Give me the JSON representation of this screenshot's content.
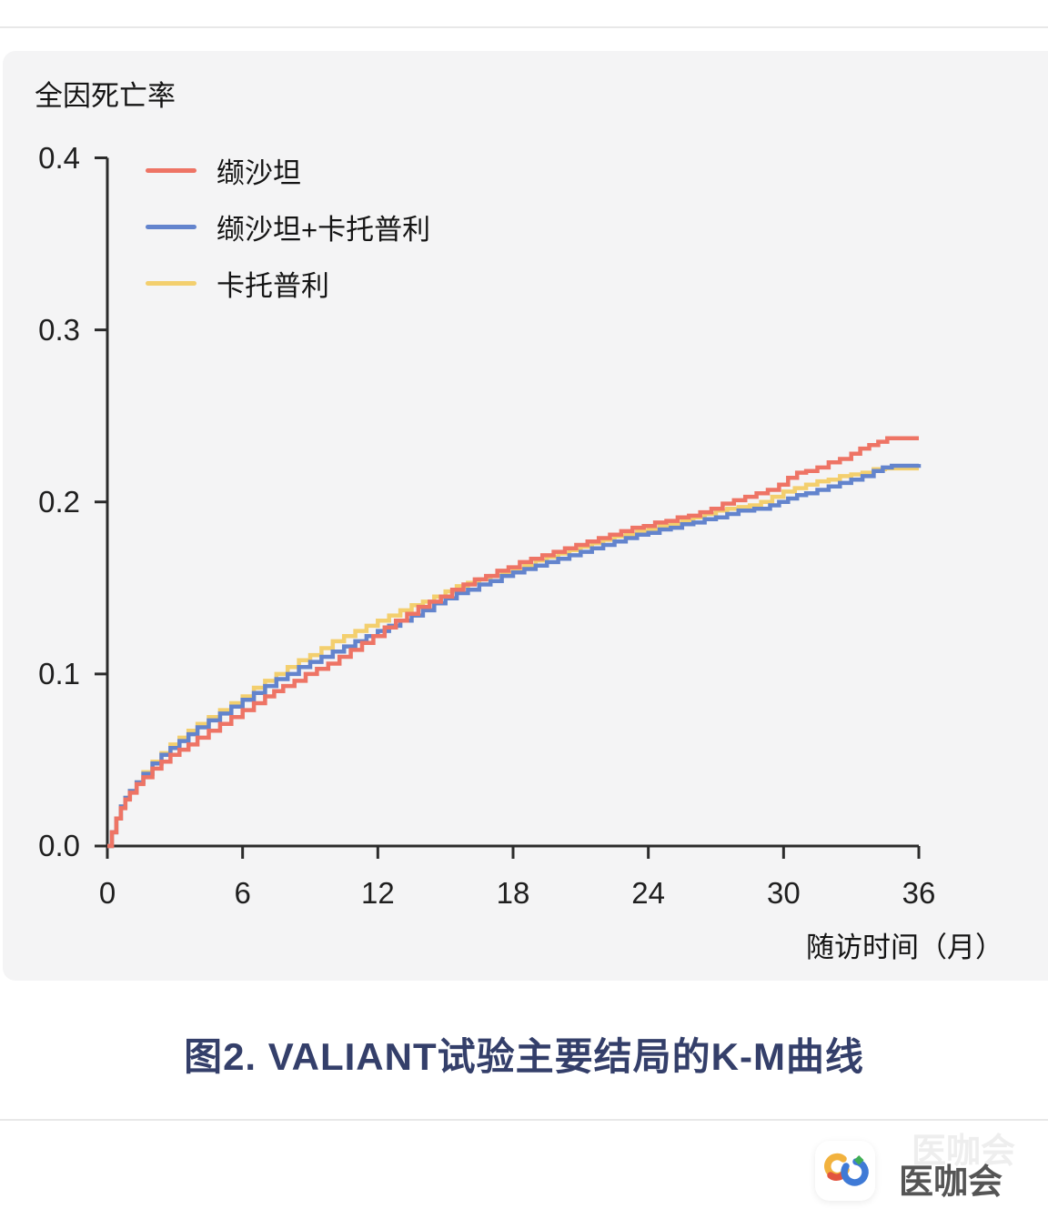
{
  "chart_title": "全因死亡率",
  "x_axis_title": "随访时间（月）",
  "caption": "图2. VALIANT试验主要结局的K-M曲线",
  "watermark": {
    "text": "医咖会"
  },
  "colors": {
    "valsartan": "#ee7465",
    "valsartan_captopril": "#6384cd",
    "captopril": "#f3cf6e",
    "axis": "#2b2b2b",
    "panel": "#f4f4f5",
    "caption": "#343f6a",
    "divider": "#e8e8e8"
  },
  "chart_data": {
    "type": "line",
    "subtype": "kaplan-meier-step",
    "title": "全因死亡率",
    "xlabel": "随访时间（月）",
    "ylabel": "全因死亡率",
    "xlim": [
      0,
      36
    ],
    "ylim": [
      0,
      0.4
    ],
    "x_ticks": [
      0,
      6,
      12,
      18,
      24,
      30,
      36
    ],
    "y_ticks": [
      0.0,
      0.1,
      0.2,
      0.3,
      0.4
    ],
    "y_tick_labels": [
      "0.0",
      "0.1",
      "0.2",
      "0.3",
      "0.4"
    ],
    "grid": false,
    "legend_position": "top-left",
    "series": [
      {
        "name": "缬沙坦",
        "color": "#ee7465",
        "final_value": 0.237,
        "points": [
          [
            0,
            0
          ],
          [
            0.2,
            0.008
          ],
          [
            0.4,
            0.016
          ],
          [
            0.6,
            0.022
          ],
          [
            0.8,
            0.027
          ],
          [
            1,
            0.031
          ],
          [
            1.3,
            0.036
          ],
          [
            1.6,
            0.04
          ],
          [
            2,
            0.045
          ],
          [
            2.4,
            0.049
          ],
          [
            2.8,
            0.053
          ],
          [
            3.2,
            0.056
          ],
          [
            3.6,
            0.059
          ],
          [
            4,
            0.063
          ],
          [
            4.5,
            0.067
          ],
          [
            5,
            0.071
          ],
          [
            5.5,
            0.075
          ],
          [
            6,
            0.079
          ],
          [
            6.5,
            0.083
          ],
          [
            7,
            0.087
          ],
          [
            7.4,
            0.09
          ],
          [
            7.8,
            0.093
          ],
          [
            8.3,
            0.096
          ],
          [
            8.8,
            0.1
          ],
          [
            9.3,
            0.103
          ],
          [
            9.8,
            0.106
          ],
          [
            10.3,
            0.11
          ],
          [
            10.8,
            0.114
          ],
          [
            11.3,
            0.118
          ],
          [
            11.8,
            0.122
          ],
          [
            12.3,
            0.127
          ],
          [
            12.8,
            0.131
          ],
          [
            13.3,
            0.135
          ],
          [
            13.8,
            0.139
          ],
          [
            14.3,
            0.142
          ],
          [
            14.8,
            0.145
          ],
          [
            15.3,
            0.149
          ],
          [
            15.8,
            0.152
          ],
          [
            16.3,
            0.155
          ],
          [
            16.8,
            0.157
          ],
          [
            17.3,
            0.16
          ],
          [
            17.8,
            0.162
          ],
          [
            18.3,
            0.165
          ],
          [
            18.8,
            0.167
          ],
          [
            19.3,
            0.169
          ],
          [
            19.8,
            0.171
          ],
          [
            20.3,
            0.173
          ],
          [
            20.8,
            0.175
          ],
          [
            21.3,
            0.177
          ],
          [
            21.8,
            0.179
          ],
          [
            22.3,
            0.181
          ],
          [
            22.8,
            0.183
          ],
          [
            23.3,
            0.185
          ],
          [
            23.8,
            0.186
          ],
          [
            24.3,
            0.188
          ],
          [
            24.8,
            0.189
          ],
          [
            25.3,
            0.191
          ],
          [
            25.8,
            0.192
          ],
          [
            26.3,
            0.194
          ],
          [
            26.8,
            0.196
          ],
          [
            27.3,
            0.199
          ],
          [
            27.8,
            0.201
          ],
          [
            28.3,
            0.203
          ],
          [
            28.8,
            0.205
          ],
          [
            29.3,
            0.207
          ],
          [
            29.8,
            0.21
          ],
          [
            30.2,
            0.214
          ],
          [
            30.6,
            0.217
          ],
          [
            31,
            0.218
          ],
          [
            31.5,
            0.22
          ],
          [
            32,
            0.223
          ],
          [
            32.5,
            0.225
          ],
          [
            33,
            0.228
          ],
          [
            33.4,
            0.231
          ],
          [
            33.8,
            0.233
          ],
          [
            34.2,
            0.235
          ],
          [
            34.6,
            0.237
          ],
          [
            36,
            0.237
          ]
        ]
      },
      {
        "name": "缬沙坦+卡托普利",
        "color": "#6384cd",
        "final_value": 0.222,
        "points": [
          [
            0,
            0
          ],
          [
            0.2,
            0.008
          ],
          [
            0.4,
            0.016
          ],
          [
            0.6,
            0.023
          ],
          [
            0.8,
            0.028
          ],
          [
            1,
            0.032
          ],
          [
            1.3,
            0.037
          ],
          [
            1.6,
            0.042
          ],
          [
            2,
            0.048
          ],
          [
            2.4,
            0.053
          ],
          [
            2.8,
            0.057
          ],
          [
            3.2,
            0.061
          ],
          [
            3.6,
            0.065
          ],
          [
            4,
            0.069
          ],
          [
            4.5,
            0.073
          ],
          [
            5,
            0.077
          ],
          [
            5.5,
            0.081
          ],
          [
            6,
            0.085
          ],
          [
            6.5,
            0.089
          ],
          [
            7,
            0.093
          ],
          [
            7.5,
            0.097
          ],
          [
            8,
            0.1
          ],
          [
            8.5,
            0.104
          ],
          [
            9,
            0.107
          ],
          [
            9.5,
            0.11
          ],
          [
            10,
            0.113
          ],
          [
            10.5,
            0.116
          ],
          [
            11,
            0.119
          ],
          [
            11.5,
            0.122
          ],
          [
            12,
            0.125
          ],
          [
            12.5,
            0.128
          ],
          [
            13,
            0.131
          ],
          [
            13.5,
            0.134
          ],
          [
            14,
            0.137
          ],
          [
            14.5,
            0.141
          ],
          [
            15,
            0.144
          ],
          [
            15.5,
            0.147
          ],
          [
            16,
            0.149
          ],
          [
            16.5,
            0.152
          ],
          [
            17,
            0.154
          ],
          [
            17.5,
            0.157
          ],
          [
            18,
            0.159
          ],
          [
            18.5,
            0.161
          ],
          [
            19,
            0.163
          ],
          [
            19.5,
            0.165
          ],
          [
            20,
            0.167
          ],
          [
            20.5,
            0.169
          ],
          [
            21,
            0.171
          ],
          [
            21.5,
            0.173
          ],
          [
            22,
            0.175
          ],
          [
            22.5,
            0.177
          ],
          [
            23,
            0.179
          ],
          [
            23.5,
            0.181
          ],
          [
            24,
            0.182
          ],
          [
            24.5,
            0.184
          ],
          [
            25,
            0.185
          ],
          [
            25.5,
            0.187
          ],
          [
            26,
            0.188
          ],
          [
            26.5,
            0.19
          ],
          [
            27,
            0.191
          ],
          [
            27.5,
            0.193
          ],
          [
            28,
            0.195
          ],
          [
            28.7,
            0.196
          ],
          [
            29.4,
            0.198
          ],
          [
            29.8,
            0.2
          ],
          [
            30.2,
            0.202
          ],
          [
            30.6,
            0.204
          ],
          [
            31,
            0.205
          ],
          [
            31.5,
            0.207
          ],
          [
            32,
            0.209
          ],
          [
            32.5,
            0.211
          ],
          [
            33,
            0.213
          ],
          [
            33.5,
            0.215
          ],
          [
            34,
            0.218
          ],
          [
            34.4,
            0.22
          ],
          [
            34.8,
            0.221
          ],
          [
            36,
            0.222
          ]
        ]
      },
      {
        "name": "卡托普利",
        "color": "#f3cf6e",
        "final_value": 0.2195,
        "points": [
          [
            0,
            0
          ],
          [
            0.2,
            0.008
          ],
          [
            0.4,
            0.016
          ],
          [
            0.6,
            0.023
          ],
          [
            0.8,
            0.028
          ],
          [
            1,
            0.032
          ],
          [
            1.3,
            0.037
          ],
          [
            1.6,
            0.043
          ],
          [
            2,
            0.049
          ],
          [
            2.4,
            0.054
          ],
          [
            2.8,
            0.059
          ],
          [
            3.2,
            0.063
          ],
          [
            3.6,
            0.067
          ],
          [
            4,
            0.071
          ],
          [
            4.5,
            0.075
          ],
          [
            5,
            0.079
          ],
          [
            5.5,
            0.083
          ],
          [
            6,
            0.087
          ],
          [
            6.5,
            0.092
          ],
          [
            7,
            0.096
          ],
          [
            7.5,
            0.1
          ],
          [
            8,
            0.104
          ],
          [
            8.5,
            0.108
          ],
          [
            9,
            0.111
          ],
          [
            9.5,
            0.115
          ],
          [
            10,
            0.119
          ],
          [
            10.5,
            0.122
          ],
          [
            11,
            0.125
          ],
          [
            11.5,
            0.128
          ],
          [
            12,
            0.131
          ],
          [
            12.5,
            0.134
          ],
          [
            13,
            0.137
          ],
          [
            13.5,
            0.14
          ],
          [
            14,
            0.142
          ],
          [
            14.5,
            0.145
          ],
          [
            15,
            0.148
          ],
          [
            15.5,
            0.151
          ],
          [
            16,
            0.153
          ],
          [
            16.5,
            0.155
          ],
          [
            17,
            0.157
          ],
          [
            17.5,
            0.159
          ],
          [
            18,
            0.161
          ],
          [
            18.5,
            0.163
          ],
          [
            19,
            0.166
          ],
          [
            19.5,
            0.168
          ],
          [
            20,
            0.17
          ],
          [
            20.5,
            0.172
          ],
          [
            21,
            0.174
          ],
          [
            21.5,
            0.176
          ],
          [
            22,
            0.178
          ],
          [
            22.5,
            0.18
          ],
          [
            23,
            0.181
          ],
          [
            23.5,
            0.183
          ],
          [
            24,
            0.184
          ],
          [
            24.5,
            0.186
          ],
          [
            25,
            0.187
          ],
          [
            25.5,
            0.189
          ],
          [
            26,
            0.191
          ],
          [
            26.5,
            0.193
          ],
          [
            27,
            0.195
          ],
          [
            27.5,
            0.196
          ],
          [
            28,
            0.197
          ],
          [
            28.5,
            0.198
          ],
          [
            29,
            0.2
          ],
          [
            29.5,
            0.203
          ],
          [
            30,
            0.206
          ],
          [
            30.5,
            0.208
          ],
          [
            31,
            0.21
          ],
          [
            31.5,
            0.212
          ],
          [
            32,
            0.213
          ],
          [
            32.5,
            0.215
          ],
          [
            33,
            0.216
          ],
          [
            33.5,
            0.217
          ],
          [
            34,
            0.219
          ],
          [
            34.5,
            0.2195
          ],
          [
            36,
            0.2195
          ]
        ]
      }
    ]
  }
}
